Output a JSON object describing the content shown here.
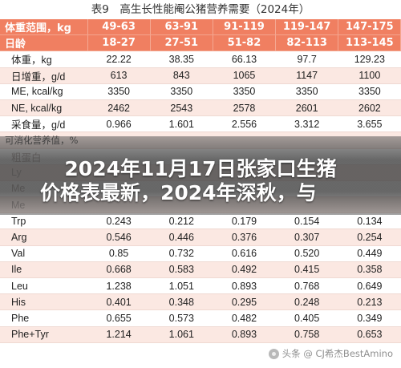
{
  "caption": "表9　高生长性能阉公猪营养需要（2024年）",
  "table": {
    "header_rows": [
      [
        "体重范围，kg",
        "49-63",
        "63-91",
        "91-119",
        "119-147",
        "147-175"
      ],
      [
        "日龄",
        "18-27",
        "27-51",
        "51-82",
        "82-113",
        "113-145"
      ]
    ],
    "rows": [
      [
        "体重，kg",
        "22.22",
        "38.35",
        "66.13",
        "97.7",
        "129.23"
      ],
      [
        "日增重，g/d",
        "613",
        "843",
        "1065",
        "1147",
        "1100"
      ],
      [
        "ME, kcal/kg",
        "3350",
        "3350",
        "3350",
        "3350",
        "3350"
      ],
      [
        "NE, kcal/kg",
        "2462",
        "2543",
        "2578",
        "2601",
        "2602"
      ],
      [
        "采食量，g/d",
        "0.966",
        "1.601",
        "2.556",
        "3.312",
        "3.655"
      ]
    ],
    "section_label": "可消化营养值，%",
    "partial_rows": [
      [
        "粗蛋白",
        "",
        "",
        "",
        "",
        ""
      ],
      [
        "Ly",
        "",
        "",
        "",
        "",
        ""
      ],
      [
        "Me",
        "",
        "",
        "",
        "",
        ""
      ],
      [
        "Me",
        "",
        "",
        "",
        "",
        ""
      ]
    ],
    "lower_rows": [
      [
        "Trp",
        "0.243",
        "0.212",
        "0.179",
        "0.154",
        "0.134"
      ],
      [
        "Arg",
        "0.546",
        "0.446",
        "0.376",
        "0.307",
        "0.254"
      ],
      [
        "Val",
        "0.85",
        "0.732",
        "0.616",
        "0.520",
        "0.449"
      ],
      [
        "Ile",
        "0.668",
        "0.583",
        "0.492",
        "0.415",
        "0.358"
      ],
      [
        "Leu",
        "1.238",
        "1.051",
        "0.893",
        "0.768",
        "0.649"
      ],
      [
        "His",
        "0.401",
        "0.348",
        "0.295",
        "0.248",
        "0.213"
      ],
      [
        "Phe",
        "0.655",
        "0.573",
        "0.482",
        "0.405",
        "0.349"
      ],
      [
        "Phe+Tyr",
        "1.214",
        "1.061",
        "0.893",
        "0.758",
        "0.653"
      ]
    ]
  },
  "headline": {
    "line1": "2024年11月17日张家口生猪",
    "line2": "价格表最新，2024年深秋，与"
  },
  "watermark": "头条 @ CJ希杰BestAmino",
  "colors": {
    "header_bg": "#f07f61",
    "alt_row_bg": "#fbe8e2",
    "header_text": "#ffffff"
  }
}
